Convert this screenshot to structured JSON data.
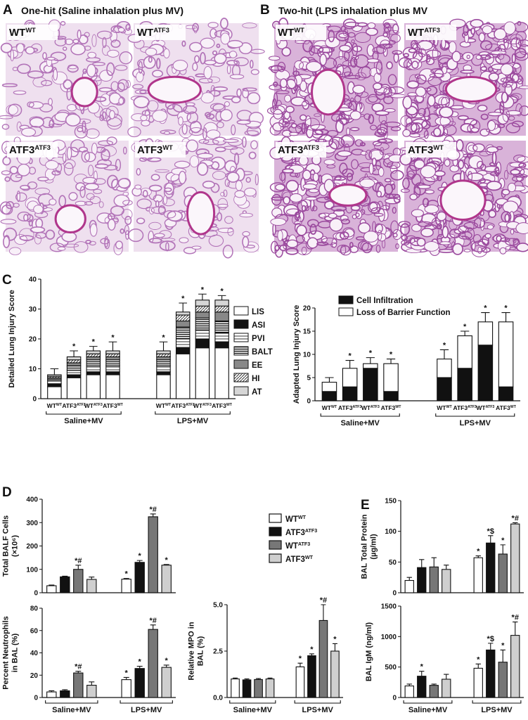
{
  "panels": {
    "A": {
      "letter": "A",
      "title": "One-hit (Saline inhalation plus MV)",
      "images": [
        {
          "base": "WT",
          "sup": "WT"
        },
        {
          "base": "WT",
          "sup": "ATF3"
        },
        {
          "base": "ATF3",
          "sup": "ATF3"
        },
        {
          "base": "ATF3",
          "sup": "WT"
        }
      ]
    },
    "B": {
      "letter": "B",
      "title": "Two-hit (LPS inhalation plus MV",
      "images": [
        {
          "base": "WT",
          "sup": "WT"
        },
        {
          "base": "WT",
          "sup": "ATF3"
        },
        {
          "base": "ATF3",
          "sup": "ATF3"
        },
        {
          "base": "ATF3",
          "sup": "WT"
        }
      ]
    },
    "C": {
      "letter": "C"
    },
    "D": {
      "letter": "D"
    },
    "E": {
      "letter": "E"
    }
  },
  "legend": [
    {
      "base": "WT",
      "sup": "WT",
      "color": "#ffffff"
    },
    {
      "base": "ATF3",
      "sup": "ATF3",
      "color": "#111111"
    },
    {
      "base": "WT",
      "sup": "ATF3",
      "color": "#777777"
    },
    {
      "base": "ATF3",
      "sup": "WT",
      "color": "#cfcfcf"
    }
  ],
  "chart_data": [
    {
      "type": "stacked_bar",
      "ylabel": [
        "Detailed Lung Injury Score"
      ],
      "categories": [
        {
          "base": "WT",
          "sup": "WT"
        },
        {
          "base": "ATF3",
          "sup": "ATF3"
        },
        {
          "base": "WT",
          "sup": "ATF3"
        },
        {
          "base": "ATF3",
          "sup": "WT"
        },
        {
          "base": "WT",
          "sup": "WT"
        },
        {
          "base": "ATF3",
          "sup": "ATF3"
        },
        {
          "base": "WT",
          "sup": "ATF3"
        },
        {
          "base": "ATF3",
          "sup": "WT"
        }
      ],
      "groups": [
        "Saline+MV",
        "LPS+MV"
      ],
      "series": [
        {
          "name": "LIS",
          "color": "#ffffff",
          "values": [
            4,
            7,
            8,
            8,
            8,
            15,
            17,
            17
          ]
        },
        {
          "name": "ASI",
          "color": "#111111",
          "values": [
            1,
            1,
            1,
            1,
            1,
            2,
            3,
            2
          ]
        },
        {
          "name": "PVI",
          "pattern": "hlines",
          "values": [
            1,
            1.5,
            2,
            2,
            2,
            3,
            3,
            3
          ]
        },
        {
          "name": "BALT",
          "pattern": "dense",
          "values": [
            0.5,
            1.5,
            2,
            2,
            2,
            4,
            4,
            4
          ]
        },
        {
          "name": "EE",
          "color": "#888888",
          "values": [
            0.5,
            1,
            1,
            1,
            1,
            2,
            2,
            3
          ]
        },
        {
          "name": "HI",
          "pattern": "diag",
          "values": [
            0.5,
            1,
            1,
            1,
            1,
            2,
            2,
            2
          ]
        },
        {
          "name": "AT",
          "color": "#d6d6d6",
          "values": [
            0.5,
            1,
            1,
            1,
            1,
            1,
            2,
            2
          ]
        }
      ],
      "errors": [
        2,
        2,
        1.5,
        3,
        3,
        3,
        2,
        1.5
      ],
      "bar_labels": [
        null,
        "*",
        "*",
        "*",
        "*",
        "*",
        "*",
        "*"
      ],
      "ylim": [
        0,
        40
      ],
      "yticks": [
        0,
        10,
        20,
        30,
        40
      ]
    },
    {
      "type": "stacked_bar",
      "ylabel": [
        "Adapted Lung Injury Score"
      ],
      "categories": [
        {
          "base": "WT",
          "sup": "WT"
        },
        {
          "base": "ATF3",
          "sup": "ATF3"
        },
        {
          "base": "WT",
          "sup": "ATF3"
        },
        {
          "base": "ATF3",
          "sup": "WT"
        },
        {
          "base": "WT",
          "sup": "WT"
        },
        {
          "base": "ATF3",
          "sup": "ATF3"
        },
        {
          "base": "WT",
          "sup": "ATF3"
        },
        {
          "base": "ATF3",
          "sup": "WT"
        }
      ],
      "groups": [
        "Saline+MV",
        "LPS+MV"
      ],
      "series": [
        {
          "name": "Cell Infiltration",
          "color": "#111111",
          "values": [
            2,
            3,
            7,
            2,
            5,
            7,
            12,
            3
          ]
        },
        {
          "name": "Loss of Barrier Function",
          "color": "#ffffff",
          "values": [
            2,
            4,
            1,
            6,
            4,
            7,
            5,
            14
          ]
        }
      ],
      "errors": [
        1,
        1.7,
        1.3,
        1,
        2,
        1,
        2,
        2
      ],
      "bar_labels": [
        null,
        "*",
        "*",
        "*",
        "*",
        "*",
        "*",
        "*"
      ],
      "ylim": [
        0,
        20
      ],
      "yticks": [
        0,
        5,
        10,
        15,
        20
      ]
    },
    {
      "type": "bar",
      "ylabel": [
        "Total BALF Cells",
        "(×10⁶)"
      ],
      "values": [
        30,
        68,
        100,
        57,
        58,
        130,
        325,
        118
      ],
      "errors": [
        3,
        3,
        18,
        10,
        3,
        8,
        12,
        3
      ],
      "bar_labels": [
        null,
        null,
        "*#",
        null,
        "*",
        "*",
        "*#",
        "*"
      ],
      "ylim": [
        0,
        400
      ],
      "yticks": [
        0,
        100,
        200,
        300,
        400
      ]
    },
    {
      "type": "bar",
      "ylabel": [
        "Percent Neutrophils",
        "in BAL (%)"
      ],
      "groups": [
        "Saline+MV",
        "LPS+MV"
      ],
      "values": [
        5,
        6,
        22,
        11,
        16,
        26,
        61,
        27
      ],
      "errors": [
        1,
        1,
        1.5,
        3,
        2,
        2,
        4,
        2
      ],
      "bar_labels": [
        null,
        null,
        "*#",
        null,
        "*",
        "*",
        "*#",
        "*"
      ],
      "ylim": [
        0,
        80
      ],
      "yticks": [
        0,
        20,
        40,
        60,
        80
      ]
    },
    {
      "type": "bar",
      "ylabel": [
        "Relative MPO in",
        "BAL (%)"
      ],
      "groups": [
        "Saline+MV",
        "LPS+MV"
      ],
      "values": [
        1.0,
        0.95,
        0.97,
        1.0,
        1.65,
        2.25,
        4.15,
        2.5
      ],
      "errors": [
        0.05,
        0.05,
        0.05,
        0.05,
        0.2,
        0.1,
        0.85,
        0.4
      ],
      "bar_labels": [
        null,
        null,
        null,
        null,
        "*",
        "*",
        "*#",
        "*"
      ],
      "ylim": [
        0,
        5
      ],
      "yticks": [
        {
          "value": 0,
          "label": "0.0"
        },
        {
          "value": 2.5,
          "label": "2.5"
        },
        {
          "value": 5,
          "label": "5.0"
        }
      ]
    },
    {
      "type": "bar",
      "ylabel": [
        "BAL Total Protein",
        "(µg/ml)"
      ],
      "values": [
        20,
        41,
        42,
        38,
        57,
        81,
        63,
        112
      ],
      "errors": [
        5,
        13,
        15,
        7,
        3,
        12,
        15,
        2
      ],
      "bar_labels": [
        null,
        null,
        null,
        null,
        "*",
        "*$",
        "*",
        "*#"
      ],
      "ylim": [
        0,
        150
      ],
      "yticks": [
        0,
        50,
        100,
        150
      ]
    },
    {
      "type": "bar",
      "ylabel": [
        "BAL IgM (ng/ml)"
      ],
      "groups": [
        "Saline+MV",
        "LPS+MV"
      ],
      "values": [
        190,
        350,
        200,
        300,
        480,
        780,
        580,
        1020
      ],
      "errors": [
        30,
        80,
        20,
        80,
        70,
        110,
        200,
        220
      ],
      "bar_labels": [
        null,
        "*",
        null,
        null,
        "*",
        "*$",
        "*",
        "*#"
      ],
      "ylim": [
        0,
        1500
      ],
      "yticks": [
        0,
        500,
        1000,
        1500
      ]
    }
  ]
}
